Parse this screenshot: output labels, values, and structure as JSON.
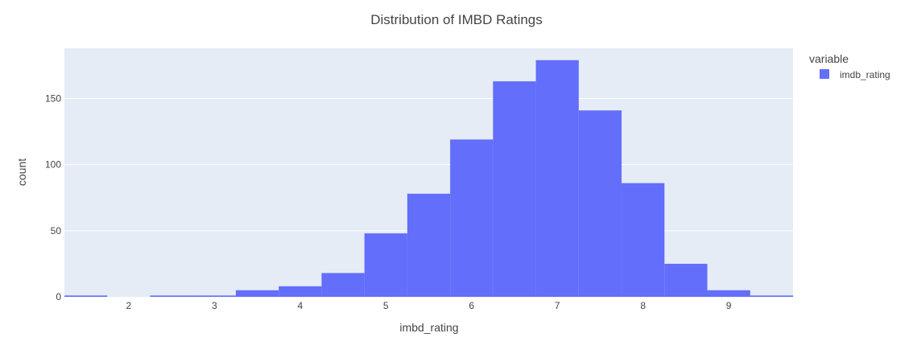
{
  "chart_data": {
    "type": "bar",
    "title": "Distribution of IMBD Ratings",
    "xlabel": "imbd_rating",
    "ylabel": "count",
    "bin_width": 0.5,
    "bins": [
      {
        "x0": 1.25,
        "x1": 1.75,
        "count": 1
      },
      {
        "x0": 1.75,
        "x1": 2.25,
        "count": 0
      },
      {
        "x0": 2.25,
        "x1": 2.75,
        "count": 1
      },
      {
        "x0": 2.75,
        "x1": 3.25,
        "count": 1
      },
      {
        "x0": 3.25,
        "x1": 3.75,
        "count": 5
      },
      {
        "x0": 3.75,
        "x1": 4.25,
        "count": 8
      },
      {
        "x0": 4.25,
        "x1": 4.75,
        "count": 18
      },
      {
        "x0": 4.75,
        "x1": 5.25,
        "count": 48
      },
      {
        "x0": 5.25,
        "x1": 5.75,
        "count": 78
      },
      {
        "x0": 5.75,
        "x1": 6.25,
        "count": 119
      },
      {
        "x0": 6.25,
        "x1": 6.75,
        "count": 163
      },
      {
        "x0": 6.75,
        "x1": 7.25,
        "count": 179
      },
      {
        "x0": 7.25,
        "x1": 7.75,
        "count": 141
      },
      {
        "x0": 7.75,
        "x1": 8.25,
        "count": 86
      },
      {
        "x0": 8.25,
        "x1": 8.75,
        "count": 25
      },
      {
        "x0": 8.75,
        "x1": 9.25,
        "count": 5
      },
      {
        "x0": 9.25,
        "x1": 9.75,
        "count": 1
      }
    ],
    "xlim": [
      1.25,
      9.75
    ],
    "ylim": [
      0,
      188
    ],
    "x_ticks": [
      2,
      3,
      4,
      5,
      6,
      7,
      8,
      9
    ],
    "y_ticks": [
      0,
      50,
      100,
      150
    ],
    "grid": true,
    "legend": {
      "title": "variable",
      "placement": "right",
      "entries": [
        {
          "name": "imdb_rating",
          "color": "#636efa"
        }
      ]
    },
    "colors": {
      "bar": "#636efa",
      "plot_bg": "#e5ecf6",
      "grid": "#ffffff"
    }
  }
}
